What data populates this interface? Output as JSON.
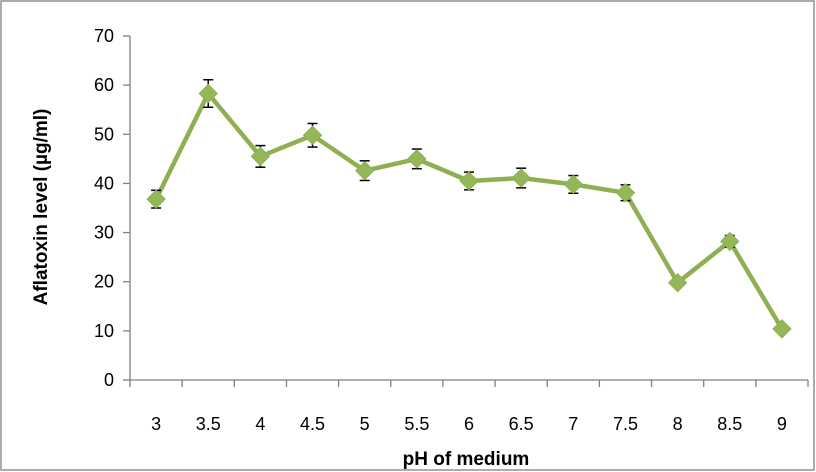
{
  "chart_data": {
    "type": "line",
    "title": "",
    "xlabel": "pH of medium",
    "ylabel": "Aflatoxin level (µg/ml)",
    "categories": [
      "3",
      "3.5",
      "4",
      "4.5",
      "5",
      "5.5",
      "6",
      "6.5",
      "7",
      "7.5",
      "8",
      "8.5",
      "9"
    ],
    "y_ticks": [
      "0",
      "10",
      "20",
      "30",
      "40",
      "50",
      "60",
      "70"
    ],
    "ylim": [
      0,
      70
    ],
    "grid": false,
    "legend": "none",
    "series": [
      {
        "values": [
          36.8,
          58.3,
          45.5,
          49.8,
          42.6,
          45.0,
          40.5,
          41.1,
          39.8,
          38.1,
          19.8,
          28.2,
          10.4
        ],
        "errors": [
          1.8,
          2.8,
          2.2,
          2.4,
          2.0,
          2.0,
          1.8,
          2.0,
          1.8,
          1.6,
          0.8,
          1.2,
          0.4
        ]
      }
    ],
    "colors": {
      "series": "#8faf52",
      "marker": "#94b858",
      "axis": "#808080",
      "border": "#808080",
      "error_bar": "#000000"
    }
  }
}
